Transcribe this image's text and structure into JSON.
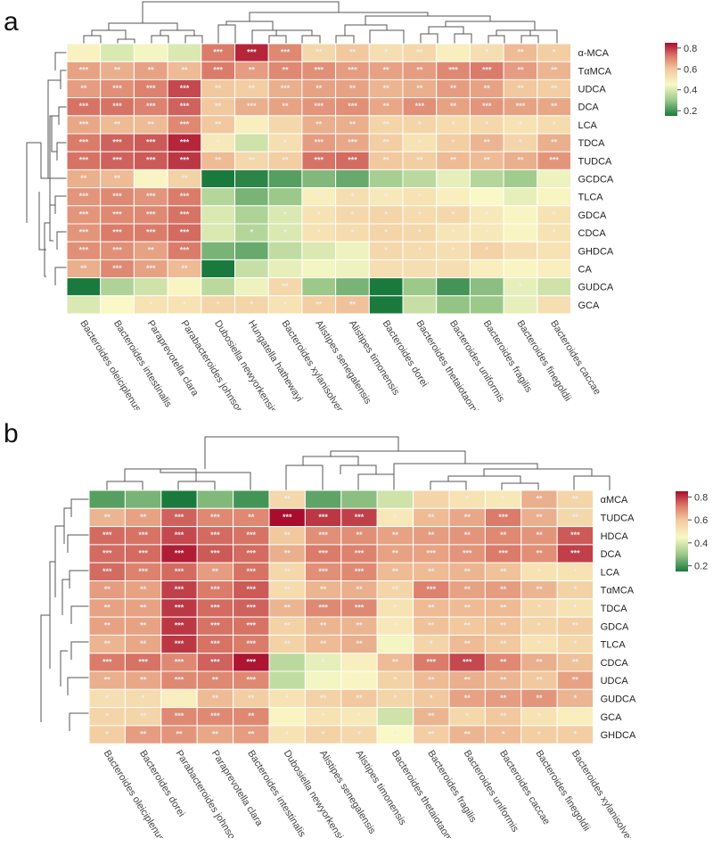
{
  "colors": {
    "low": "#1a7a3e",
    "mid": "#f9f8c6",
    "high": "#a90c2d",
    "star": "#e8e8e8",
    "dendro": "#555555"
  },
  "chart_data": [
    {
      "panel": "a",
      "type": "heatmap",
      "columns": [
        "Bacteroides oleiciplenus",
        "Bacteroides intestinalis",
        "Paraprevotella clara",
        "Parabacteroides johnsonii",
        "Dubosiella newyorkensis",
        "Hungatella hathewayi",
        "Bacteroides xylanisolvens",
        "Alistipes senegalensis",
        "Alistipes timonensis",
        "Bacteroides dorei",
        "Bacteroides thetaiotaomicron",
        "Bacteroides uniformis",
        "Bacteroides fragilis",
        "Bacteroides finegoldii",
        "Bacteroides caccae"
      ],
      "rows": [
        "α-MCA",
        "TαMCA",
        "UDCA",
        "DCA",
        "LCA",
        "TDCA",
        "TUDCA",
        "GCDCA",
        "TLCA",
        "GDCA",
        "CDCA",
        "GHDCA",
        "CA",
        "GUDCA",
        "GCA"
      ],
      "legend": {
        "ticks": [
          "0.8",
          "0.6",
          "0.4",
          "0.2"
        ],
        "range": [
          0.15,
          0.85
        ]
      },
      "values": [
        [
          0.47,
          0.4,
          0.44,
          0.4,
          0.72,
          0.82,
          0.7,
          0.55,
          0.6,
          0.53,
          0.55,
          0.48,
          0.53,
          0.62,
          0.58
        ],
        [
          0.66,
          0.64,
          0.66,
          0.62,
          0.72,
          0.67,
          0.7,
          0.69,
          0.67,
          0.66,
          0.67,
          0.7,
          0.72,
          0.67,
          0.63
        ],
        [
          0.67,
          0.69,
          0.71,
          0.78,
          0.6,
          0.58,
          0.64,
          0.66,
          0.66,
          0.63,
          0.64,
          0.67,
          0.66,
          0.6,
          0.58
        ],
        [
          0.73,
          0.73,
          0.71,
          0.75,
          0.6,
          0.64,
          0.66,
          0.68,
          0.69,
          0.65,
          0.69,
          0.66,
          0.68,
          0.66,
          0.65
        ],
        [
          0.65,
          0.62,
          0.62,
          0.7,
          0.6,
          0.48,
          0.55,
          0.64,
          0.64,
          0.56,
          0.56,
          0.54,
          0.55,
          0.52,
          0.54
        ],
        [
          0.72,
          0.75,
          0.76,
          0.82,
          0.5,
          0.38,
          0.53,
          0.67,
          0.65,
          0.58,
          0.52,
          0.58,
          0.63,
          0.56,
          0.64
        ],
        [
          0.73,
          0.75,
          0.76,
          0.8,
          0.62,
          0.55,
          0.58,
          0.73,
          0.74,
          0.6,
          0.58,
          0.62,
          0.62,
          0.64,
          0.68
        ],
        [
          0.64,
          0.62,
          0.46,
          0.57,
          0.13,
          0.17,
          0.22,
          0.27,
          0.24,
          0.32,
          0.35,
          0.42,
          0.34,
          0.31,
          0.43
        ],
        [
          0.68,
          0.7,
          0.68,
          0.72,
          0.34,
          0.26,
          0.3,
          0.48,
          0.53,
          0.5,
          0.52,
          0.48,
          0.45,
          0.42,
          0.46
        ],
        [
          0.68,
          0.7,
          0.7,
          0.73,
          0.4,
          0.33,
          0.4,
          0.52,
          0.55,
          0.56,
          0.54,
          0.55,
          0.5,
          0.46,
          0.52
        ],
        [
          0.68,
          0.72,
          0.72,
          0.74,
          0.4,
          0.34,
          0.4,
          0.52,
          0.54,
          0.56,
          0.55,
          0.51,
          0.5,
          0.46,
          0.52
        ],
        [
          0.69,
          0.69,
          0.66,
          0.72,
          0.26,
          0.24,
          0.36,
          0.4,
          0.43,
          0.55,
          0.54,
          0.53,
          0.57,
          0.53,
          0.52
        ],
        [
          0.64,
          0.7,
          0.66,
          0.62,
          0.12,
          0.37,
          0.42,
          0.44,
          0.43,
          0.53,
          0.53,
          0.53,
          0.48,
          0.46,
          0.48
        ],
        [
          0.13,
          0.33,
          0.38,
          0.46,
          0.35,
          0.43,
          0.55,
          0.3,
          0.26,
          0.1,
          0.3,
          0.2,
          0.28,
          0.42,
          0.38
        ],
        [
          0.4,
          0.45,
          0.52,
          0.52,
          0.56,
          0.56,
          0.52,
          0.58,
          0.61,
          0.15,
          0.37,
          0.29,
          0.3,
          0.42,
          0.53
        ]
      ],
      "stars": [
        [
          "*",
          "",
          "",
          "",
          "***",
          "***",
          "***",
          "**",
          "**",
          "*",
          "**",
          "*",
          "*",
          "**",
          "*"
        ],
        [
          "***",
          "**",
          "**",
          "**",
          "***",
          "**",
          "**",
          "***",
          "***",
          "**",
          "**",
          "***",
          "***",
          "**",
          "**"
        ],
        [
          "**",
          "***",
          "***",
          "***",
          "**",
          "**",
          "***",
          "**",
          "**",
          "**",
          "**",
          "**",
          "**",
          "**",
          "**"
        ],
        [
          "***",
          "***",
          "***",
          "***",
          "**",
          "***",
          "**",
          "***",
          "***",
          "**",
          "***",
          "**",
          "***",
          "***",
          "**"
        ],
        [
          "***",
          "**",
          "**",
          "***",
          "**",
          "",
          "",
          "**",
          "**",
          "**",
          "*",
          "*",
          "*",
          "*",
          "*"
        ],
        [
          "***",
          "***",
          "***",
          "***",
          "*",
          "",
          "*",
          "***",
          "***",
          "**",
          "*",
          "*",
          "**",
          "*",
          "**"
        ],
        [
          "***",
          "***",
          "***",
          "***",
          "**",
          "**",
          "**",
          "***",
          "***",
          "**",
          "**",
          "**",
          "**",
          "**",
          "***"
        ],
        [
          "**",
          "**",
          "*",
          "**",
          "",
          "",
          "",
          "",
          "",
          "",
          "",
          "",
          "",
          "",
          ""
        ],
        [
          "***",
          "***",
          "***",
          "***",
          "",
          "",
          "",
          "**",
          "*",
          "*",
          "*",
          "*",
          "",
          "",
          ""
        ],
        [
          "***",
          "***",
          "***",
          "***",
          "",
          "",
          "*",
          "*",
          "*",
          "*",
          "*",
          "*",
          "*",
          "*",
          "*"
        ],
        [
          "***",
          "***",
          "***",
          "***",
          "",
          "*",
          "*",
          "*",
          "*",
          "*",
          "*",
          "*",
          "*",
          "*",
          "*"
        ],
        [
          "***",
          "***",
          "**",
          "***",
          "",
          "",
          "",
          "",
          "",
          "*",
          "*",
          "*",
          "*",
          "",
          ""
        ],
        [
          "**",
          "***",
          "***",
          "**",
          "",
          "",
          "",
          "",
          "",
          "",
          "",
          "",
          "*",
          "*",
          ""
        ],
        [
          "",
          "",
          "",
          "",
          "",
          "",
          "**",
          "",
          "",
          "",
          "",
          "",
          "",
          "*",
          ""
        ],
        [
          "",
          "",
          "*",
          "*",
          "*",
          "*",
          "*",
          "**",
          "**",
          "",
          "",
          "",
          "",
          "",
          ""
        ]
      ]
    },
    {
      "panel": "b",
      "type": "heatmap",
      "columns": [
        "Bacteroides oleiciplenus",
        "Bacteroides dorei",
        "Parabacteroides johnsonii",
        "Paraprevotella clara",
        "Bacteroides intestinalis",
        "Dubosiella newyorkensis",
        "Alistipes senegalensis",
        "Alistipes timonensis",
        "Bacteroides thetaiotaomicron",
        "Bacteroides fragilis",
        "Bacteroides uniformis",
        "Bacteroides caccae",
        "Bacteroides finegoldii",
        "Bacteroides xylanisolvens"
      ],
      "rows": [
        "αMCA",
        "TUDCA",
        "HDCA",
        "DCA",
        "LCA",
        "TαMCA",
        "TDCA",
        "GDCA",
        "TLCA",
        "CDCA",
        "UDCA",
        "GUDCA",
        "GCA",
        "GHDCA"
      ],
      "legend": {
        "ticks": [
          "0.8",
          "0.6",
          "0.4",
          "0.2"
        ],
        "range": [
          0.15,
          0.85
        ]
      },
      "values": [
        [
          0.22,
          0.26,
          0.12,
          0.27,
          0.2,
          0.55,
          0.23,
          0.28,
          0.38,
          0.56,
          0.52,
          0.5,
          0.64,
          0.56
        ],
        [
          0.63,
          0.66,
          0.75,
          0.7,
          0.7,
          0.85,
          0.8,
          0.79,
          0.5,
          0.62,
          0.65,
          0.72,
          0.64,
          0.55
        ],
        [
          0.74,
          0.73,
          0.78,
          0.74,
          0.73,
          0.6,
          0.69,
          0.69,
          0.66,
          0.67,
          0.68,
          0.7,
          0.68,
          0.76
        ],
        [
          0.74,
          0.74,
          0.83,
          0.76,
          0.74,
          0.64,
          0.72,
          0.71,
          0.66,
          0.66,
          0.68,
          0.72,
          0.69,
          0.79
        ],
        [
          0.74,
          0.71,
          0.74,
          0.67,
          0.73,
          0.55,
          0.69,
          0.7,
          0.62,
          0.62,
          0.63,
          0.61,
          0.52,
          0.52
        ],
        [
          0.67,
          0.66,
          0.79,
          0.72,
          0.76,
          0.54,
          0.63,
          0.64,
          0.56,
          0.71,
          0.66,
          0.67,
          0.63,
          0.57
        ],
        [
          0.66,
          0.66,
          0.8,
          0.74,
          0.75,
          0.63,
          0.7,
          0.7,
          0.52,
          0.62,
          0.62,
          0.62,
          0.55,
          0.52
        ],
        [
          0.66,
          0.66,
          0.8,
          0.73,
          0.73,
          0.57,
          0.63,
          0.63,
          0.5,
          0.61,
          0.6,
          0.61,
          0.56,
          0.58
        ],
        [
          0.63,
          0.65,
          0.8,
          0.73,
          0.72,
          0.57,
          0.62,
          0.64,
          0.44,
          0.56,
          0.62,
          0.6,
          0.52,
          0.55
        ],
        [
          0.72,
          0.73,
          0.7,
          0.75,
          0.84,
          0.35,
          0.42,
          0.48,
          0.62,
          0.72,
          0.78,
          0.7,
          0.64,
          0.61
        ],
        [
          0.64,
          0.65,
          0.7,
          0.7,
          0.7,
          0.36,
          0.44,
          0.46,
          0.57,
          0.62,
          0.64,
          0.63,
          0.6,
          0.66
        ],
        [
          0.53,
          0.54,
          0.48,
          0.62,
          0.58,
          0.52,
          0.57,
          0.6,
          0.56,
          0.6,
          0.66,
          0.67,
          0.68,
          0.63
        ],
        [
          0.56,
          0.56,
          0.7,
          0.7,
          0.7,
          0.46,
          0.52,
          0.5,
          0.38,
          0.63,
          0.55,
          0.6,
          0.52,
          0.48
        ],
        [
          0.58,
          0.67,
          0.68,
          0.65,
          0.67,
          0.52,
          0.57,
          0.55,
          0.45,
          0.58,
          0.63,
          0.62,
          0.58,
          0.58
        ]
      ],
      "stars": [
        [
          "",
          "",
          "",
          "",
          "",
          "**",
          "",
          "",
          "",
          "",
          "*",
          "*",
          "**",
          "**"
        ],
        [
          "**",
          "**",
          "***",
          "***",
          "**",
          "***",
          "***",
          "***",
          "*",
          "**",
          "**",
          "***",
          "**",
          "**"
        ],
        [
          "***",
          "***",
          "***",
          "***",
          "***",
          "**",
          "***",
          "**",
          "**",
          "**",
          "**",
          "**",
          "**",
          "***"
        ],
        [
          "***",
          "***",
          "***",
          "***",
          "***",
          "**",
          "***",
          "***",
          "**",
          "***",
          "***",
          "***",
          "**",
          "***"
        ],
        [
          "***",
          "***",
          "***",
          "**",
          "***",
          "**",
          "***",
          "***",
          "**",
          "**",
          "**",
          "**",
          "*",
          "*"
        ],
        [
          "**",
          "**",
          "***",
          "***",
          "***",
          "**",
          "**",
          "**",
          "**",
          "***",
          "**",
          "**",
          "**",
          "*"
        ],
        [
          "**",
          "**",
          "***",
          "***",
          "***",
          "**",
          "***",
          "***",
          "*",
          "**",
          "**",
          "**",
          "*",
          "*"
        ],
        [
          "**",
          "**",
          "***",
          "***",
          "***",
          "**",
          "**",
          "**",
          "*",
          "**",
          "**",
          "**",
          "*",
          "**"
        ],
        [
          "**",
          "**",
          "***",
          "***",
          "***",
          "**",
          "**",
          "**",
          "",
          "*",
          "**",
          "**",
          "*",
          "*"
        ],
        [
          "***",
          "***",
          "***",
          "***",
          "***",
          "",
          "*",
          "*",
          "**",
          "***",
          "***",
          "**",
          "**",
          "**"
        ],
        [
          "**",
          "**",
          "***",
          "**",
          "***",
          "",
          "*",
          "*",
          "*",
          "**",
          "**",
          "**",
          "**",
          "**"
        ],
        [
          "*",
          "*",
          "*",
          "**",
          "**",
          "*",
          "**",
          "**",
          "*",
          "*",
          "**",
          "**",
          "**",
          "*"
        ],
        [
          "*",
          "**",
          "***",
          "***",
          "**",
          "",
          "*",
          "*",
          "",
          "**",
          "*",
          "**",
          "*",
          "*"
        ],
        [
          "*",
          "**",
          "**",
          "**",
          "**",
          "*",
          "*",
          "*",
          "*",
          "**",
          "**",
          "*",
          "*",
          "*"
        ]
      ]
    }
  ]
}
